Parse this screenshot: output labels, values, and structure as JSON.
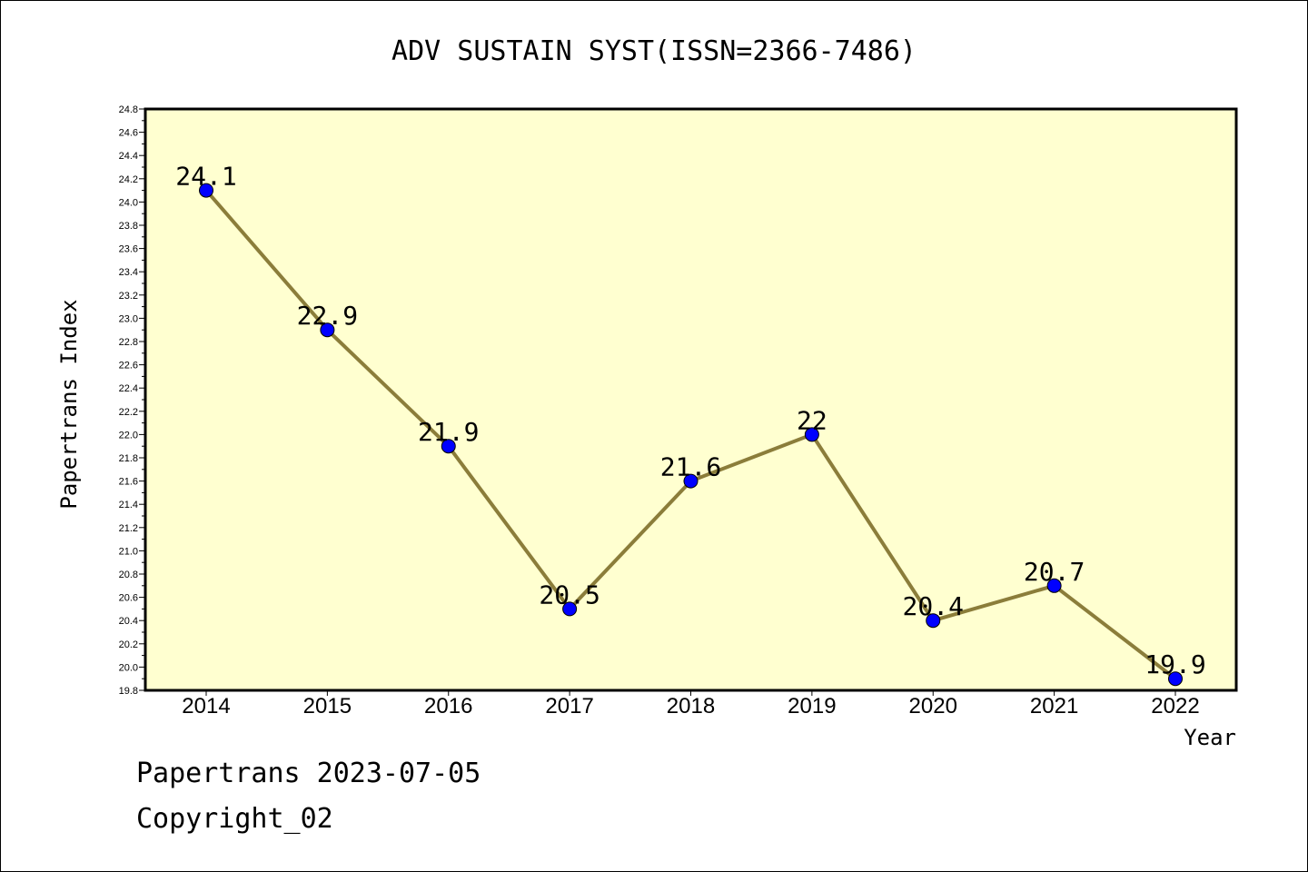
{
  "chart_data": {
    "type": "line",
    "title": "ADV SUSTAIN SYST(ISSN=2366-7486)",
    "xlabel": "Year",
    "ylabel": "Papertrans Index",
    "categories": [
      "2014",
      "2015",
      "2016",
      "2017",
      "2018",
      "2019",
      "2020",
      "2021",
      "2022"
    ],
    "values": [
      24.1,
      22.9,
      21.9,
      20.5,
      21.6,
      22.0,
      20.4,
      20.7,
      19.9
    ],
    "data_labels": [
      "24.1",
      "22.9",
      "21.9",
      "20.5",
      "21.6",
      "22",
      "20.4",
      "20.7",
      "19.9"
    ],
    "ylim": [
      19.8,
      24.8
    ],
    "yticks": [
      "19.8",
      "20.0",
      "20.2",
      "20.4",
      "20.6",
      "20.8",
      "21.0",
      "21.2",
      "21.4",
      "21.6",
      "21.8",
      "22.0",
      "22.2",
      "22.4",
      "22.6",
      "22.8",
      "23.0",
      "23.2",
      "23.4",
      "23.6",
      "23.8",
      "24.0",
      "24.2",
      "24.4",
      "24.6",
      "24.8"
    ],
    "grid": false,
    "plot_background": "#ffffd0",
    "line_color": "#8b7d3a",
    "marker_color": "#0000ff"
  },
  "footer": {
    "date_line": "Papertrans 2023-07-05",
    "copyright_line": "Copyright_02"
  }
}
